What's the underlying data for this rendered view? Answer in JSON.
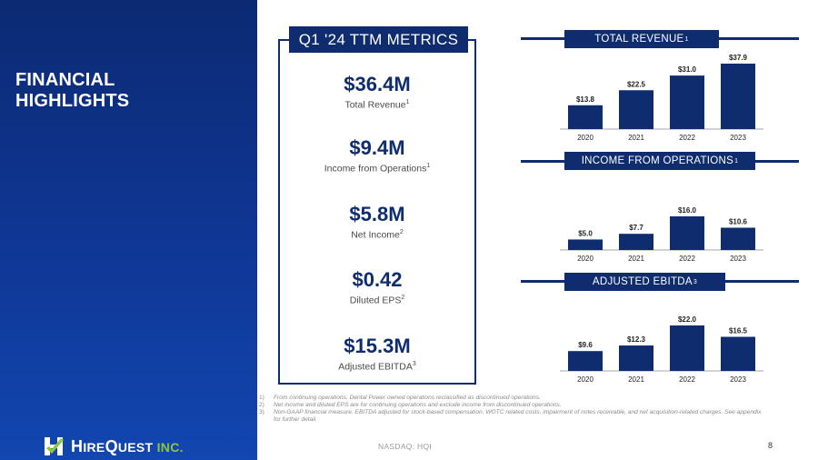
{
  "sidebar": {
    "title": "FINANCIAL HIGHLIGHTS"
  },
  "logo": {
    "text_big_h": "H",
    "text_ire": "IRE",
    "text_big_q": "Q",
    "text_uest": "UEST ",
    "text_inc": "INC",
    "text_tm": "."
  },
  "metrics": {
    "header": "Q1 '24 TTM METRICS",
    "items": [
      {
        "value": "$36.4M",
        "label": "Total Revenue",
        "note": "1"
      },
      {
        "value": "$9.4M",
        "label": "Income from Operations",
        "note": "1"
      },
      {
        "value": "$5.8M",
        "label": "Net Income",
        "note": "2"
      },
      {
        "value": "$0.42",
        "label": "Diluted EPS",
        "note": "2"
      },
      {
        "value": "$15.3M",
        "label": "Adjusted EBITDA",
        "note": "3"
      }
    ]
  },
  "chart_data": [
    {
      "type": "bar",
      "title": "TOTAL REVENUE",
      "title_note": "1",
      "categories": [
        "2020",
        "2021",
        "2022",
        "2023"
      ],
      "values": [
        13.8,
        22.5,
        31.0,
        37.9
      ],
      "labels": [
        "$13.8",
        "$22.5",
        "$31.0",
        "$37.9"
      ],
      "ylim": [
        0,
        37.9
      ],
      "grid": false
    },
    {
      "type": "bar",
      "title": "INCOME FROM OPERATIONS",
      "title_note": "1",
      "categories": [
        "2020",
        "2021",
        "2022",
        "2023"
      ],
      "values": [
        5.0,
        7.7,
        16.0,
        10.6
      ],
      "labels": [
        "$5.0",
        "$7.7",
        "$16.0",
        "$10.6"
      ],
      "ylim": [
        0,
        16.0
      ],
      "grid": false
    },
    {
      "type": "bar",
      "title": "ADJUSTED EBITDA",
      "title_note": "3",
      "categories": [
        "2020",
        "2021",
        "2022",
        "2023"
      ],
      "values": [
        9.6,
        12.3,
        22.0,
        16.5
      ],
      "labels": [
        "$9.6",
        "$12.3",
        "$22.0",
        "$16.5"
      ],
      "ylim": [
        0,
        22.0
      ],
      "grid": false
    }
  ],
  "footnotes": [
    {
      "num": "1)",
      "text": "From continuing operations. Dental Power owned operations reclassified as discontinued operations."
    },
    {
      "num": "2)",
      "text": "Net income and diluted EPS are for continuing operations and exclude income from discontinued operations."
    },
    {
      "num": "3)",
      "text": "Non-GAAP financial measure. EBITDA adjusted for stock-based compensation, WOTC related costs, impairment of notes receivable, and net acquisition-related charges. See appendix for further detail."
    }
  ],
  "footer": {
    "ticker": "NASDAQ: HQI",
    "page_number": "8"
  },
  "colors": {
    "navy": "#0f2d6e",
    "accent_green": "#8cc63f",
    "sidebar_blue": "#0f3796"
  }
}
